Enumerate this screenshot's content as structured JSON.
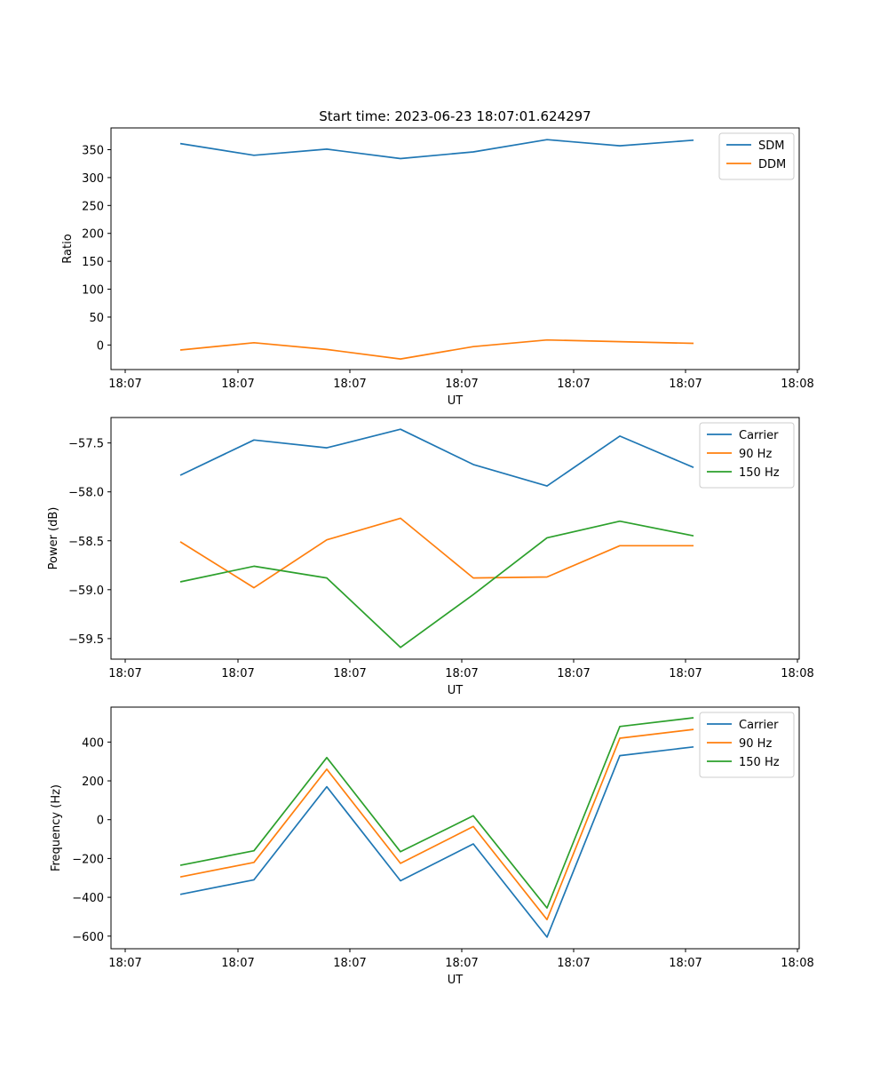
{
  "title": "Start time: 2023-06-23 18:07:01.624297",
  "colors": {
    "blue": "#1f77b4",
    "orange": "#ff7f0e",
    "green": "#2ca02c"
  },
  "chart_data": [
    {
      "type": "line",
      "title": "Start time: 2023-06-23 18:07:01.624297",
      "xlabel": "UT",
      "ylabel": "Ratio",
      "xticks": [
        "18:07",
        "18:07",
        "18:07",
        "18:07",
        "18:07",
        "18:07",
        "18:08"
      ],
      "yticks": [
        "0",
        "50",
        "100",
        "150",
        "200",
        "250",
        "300",
        "350"
      ],
      "ylim": [
        -44,
        389
      ],
      "legend": "top-right",
      "series": [
        {
          "name": "SDM",
          "color": "#1f77b4",
          "values": [
            361,
            340,
            351,
            334,
            346,
            368,
            357,
            367
          ]
        },
        {
          "name": "DDM",
          "color": "#ff7f0e",
          "values": [
            -9,
            4,
            -8,
            -25,
            -3,
            9,
            6,
            3
          ]
        }
      ]
    },
    {
      "type": "line",
      "xlabel": "UT",
      "ylabel": "Power (dB)",
      "xticks": [
        "18:07",
        "18:07",
        "18:07",
        "18:07",
        "18:07",
        "18:07",
        "18:08"
      ],
      "yticks": [
        "−59.5",
        "−59.0",
        "−58.5",
        "−58.0",
        "−57.5"
      ],
      "ylim": [
        -59.71,
        -57.24
      ],
      "legend": "top-right",
      "series": [
        {
          "name": "Carrier",
          "color": "#1f77b4",
          "values": [
            -57.83,
            -57.47,
            -57.55,
            -57.36,
            -57.72,
            -57.94,
            -57.43,
            -57.75
          ]
        },
        {
          "name": "90 Hz",
          "color": "#ff7f0e",
          "values": [
            -58.51,
            -58.98,
            -58.49,
            -58.27,
            -58.88,
            -58.87,
            -58.55,
            -58.55
          ]
        },
        {
          "name": "150 Hz",
          "color": "#2ca02c",
          "values": [
            -58.92,
            -58.76,
            -58.88,
            -59.59,
            -59.05,
            -58.47,
            -58.3,
            -58.45
          ]
        }
      ]
    },
    {
      "type": "line",
      "xlabel": "UT",
      "ylabel": "Frequency (Hz)",
      "xticks": [
        "18:07",
        "18:07",
        "18:07",
        "18:07",
        "18:07",
        "18:07",
        "18:08"
      ],
      "yticks": [
        "−600",
        "−400",
        "−200",
        "0",
        "200",
        "400"
      ],
      "ylim": [
        -665,
        580
      ],
      "legend": "top-right",
      "series": [
        {
          "name": "Carrier",
          "color": "#1f77b4",
          "values": [
            -385,
            -310,
            170,
            -315,
            -125,
            -605,
            330,
            375
          ]
        },
        {
          "name": "90 Hz",
          "color": "#ff7f0e",
          "values": [
            -295,
            -220,
            260,
            -225,
            -35,
            -515,
            420,
            465
          ]
        },
        {
          "name": "150 Hz",
          "color": "#2ca02c",
          "values": [
            -235,
            -160,
            320,
            -165,
            20,
            -455,
            480,
            525
          ]
        }
      ]
    }
  ]
}
